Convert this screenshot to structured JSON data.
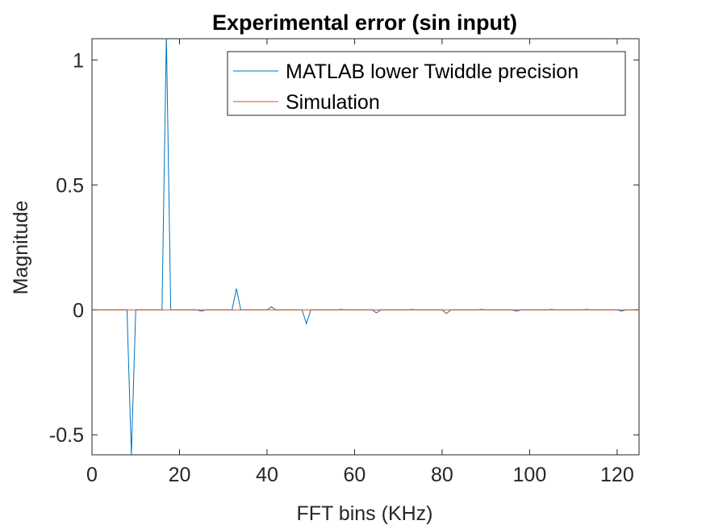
{
  "chart_data": {
    "type": "line",
    "title": "Experimental error (sin input)",
    "xlabel": "FFT bins (KHz)",
    "ylabel": "Magnitude",
    "xlim": [
      0,
      125
    ],
    "ylim": [
      -0.58,
      1.085
    ],
    "xticks": [
      0,
      20,
      40,
      60,
      80,
      100,
      120
    ],
    "yticks": [
      -0.5,
      0,
      0.5,
      1
    ],
    "xtick_labels": [
      "0",
      "20",
      "40",
      "60",
      "80",
      "100",
      "120"
    ],
    "ytick_labels": [
      "-0.5",
      "0",
      "0.5",
      "1"
    ],
    "grid": false,
    "legend_position": "top-right",
    "series": [
      {
        "name": "MATLAB lower Twiddle precision",
        "color": "#0072BD",
        "x": [
          0,
          8,
          9,
          10,
          16,
          17,
          18,
          24,
          25,
          26,
          32,
          33,
          34,
          40,
          41,
          42,
          48,
          49,
          50,
          56,
          57,
          58,
          64,
          65,
          66,
          72,
          73,
          74,
          80,
          81,
          82,
          88,
          89,
          90,
          96,
          97,
          98,
          104,
          105,
          106,
          112,
          113,
          114,
          120,
          121,
          122,
          125
        ],
        "y": [
          0,
          0,
          -0.58,
          0,
          0,
          1.1,
          0,
          0,
          -0.005,
          0,
          0,
          0.085,
          0,
          0,
          0.012,
          0,
          0,
          -0.055,
          0,
          0,
          0.002,
          0,
          0,
          -0.012,
          0,
          0,
          0.002,
          0,
          0,
          -0.015,
          0,
          0,
          0.002,
          0,
          0,
          -0.005,
          0,
          0,
          0.002,
          0,
          0,
          0.002,
          0,
          0,
          -0.005,
          0,
          0
        ]
      },
      {
        "name": "Simulation",
        "color": "#D95319",
        "x": [
          0,
          125
        ],
        "y": [
          0,
          0
        ]
      }
    ]
  }
}
